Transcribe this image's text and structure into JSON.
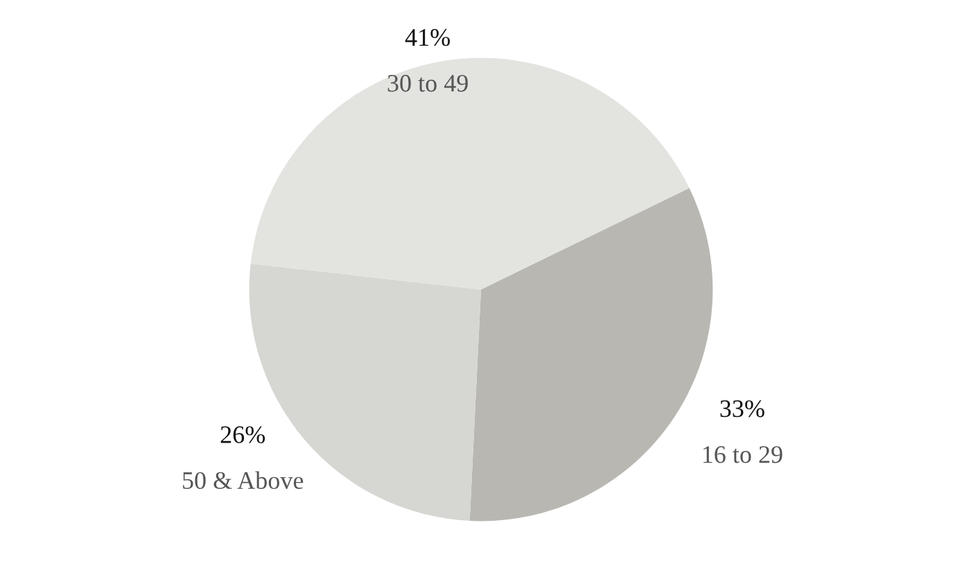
{
  "chart_data": {
    "type": "pie",
    "categories": [
      "16 to 29",
      "50 & Above",
      "30 to 49"
    ],
    "values": [
      33,
      26,
      41
    ],
    "colors": [
      "#b9b7b1",
      "#d6d6d2",
      "#e3e4e0"
    ],
    "value_labels": [
      "33%",
      "26%",
      "41%"
    ]
  }
}
